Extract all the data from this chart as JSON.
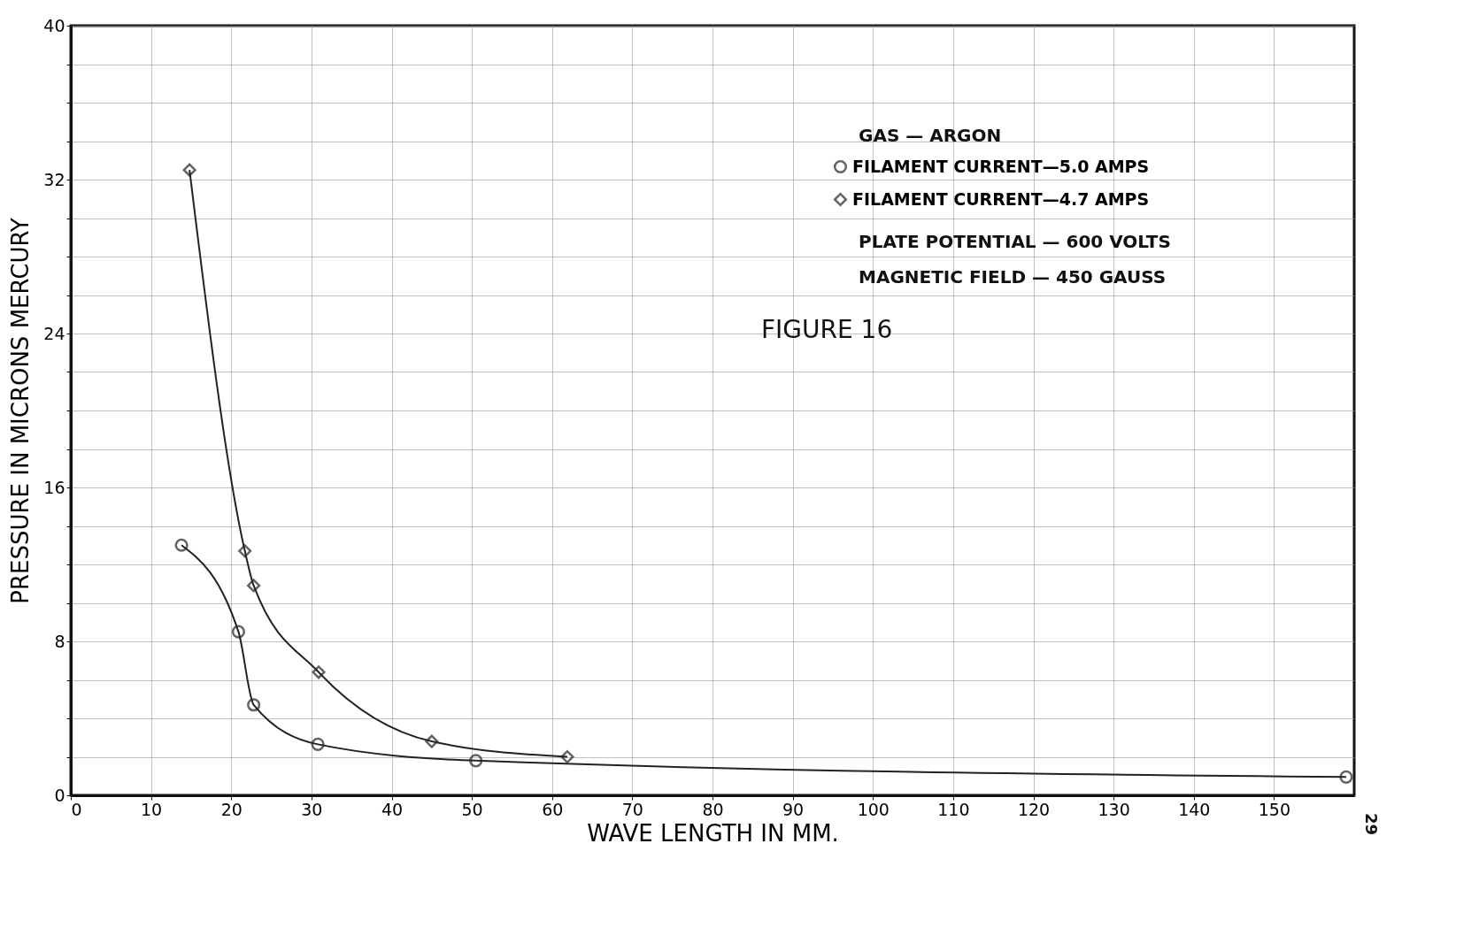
{
  "chart_data": {
    "type": "line",
    "xlabel": "WAVE LENGTH IN MM.",
    "ylabel": "PRESSURE IN MICRONS MERCURY",
    "annotations": [
      "GAS — ARGON",
      "PLATE POTENTIAL — 600 VOLTS",
      "MAGNETIC FIELD — 450 GAUSS",
      "FIGURE 16",
      "29"
    ],
    "series": [
      {
        "name": "FILAMENT CURRENT—5.0 AMPS",
        "color": "#222222",
        "marker": "circle",
        "x": [
          13.8,
          20.9,
          22.8,
          30.8,
          50.5,
          159
        ],
        "values": [
          13.0,
          8.5,
          4.7,
          2.65,
          1.8,
          0.95
        ]
      },
      {
        "name": "FILAMENT CURRENT—4.7 AMPS",
        "color": "#222222",
        "marker": "diamond",
        "x": [
          14.8,
          21.7,
          22.8,
          30.9,
          45.0,
          61.9
        ],
        "values": [
          32.5,
          12.7,
          10.9,
          6.4,
          2.8,
          2.0
        ]
      }
    ],
    "xlim": [
      0,
      160
    ],
    "xticks": [
      0,
      10,
      20,
      30,
      40,
      50,
      60,
      70,
      80,
      90,
      100,
      110,
      120,
      130,
      140,
      150
    ],
    "ylim": [
      0,
      40
    ],
    "yticks": [
      0,
      {
        "value": 2,
        "label": null
      },
      {
        "value": 4,
        "label": null
      },
      {
        "value": 6,
        "label": null
      },
      8,
      {
        "value": 10,
        "label": null
      },
      {
        "value": 12,
        "label": null
      },
      {
        "value": 14,
        "label": null
      },
      16,
      {
        "value": 18,
        "label": null
      },
      {
        "value": 20,
        "label": null
      },
      {
        "value": 22,
        "label": null
      },
      24,
      {
        "value": 26,
        "label": null
      },
      {
        "value": 28,
        "label": null
      },
      {
        "value": 30,
        "label": null
      },
      32,
      {
        "value": 34,
        "label": null
      },
      {
        "value": 36,
        "label": null
      },
      {
        "value": 38,
        "label": null
      },
      40
    ],
    "grid": true,
    "legend": "top right",
    "line_style": "solid"
  }
}
